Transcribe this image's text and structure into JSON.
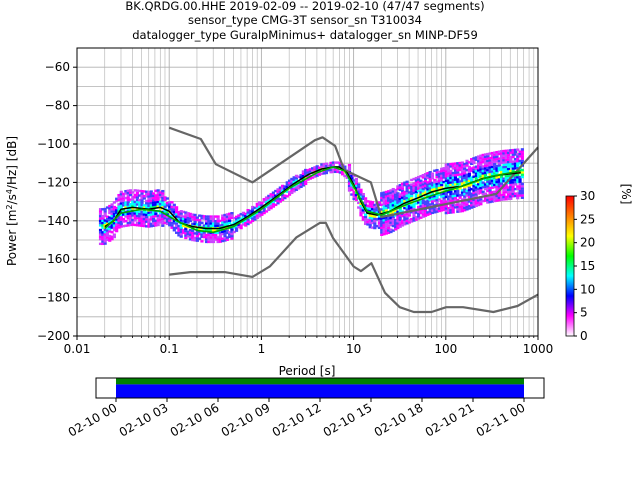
{
  "title_lines": [
    "BK.QRDG.00.HHE   2019-02-09 -- 2019-02-10  (47/47 segments)",
    "sensor_type CMG-3T sensor_sn T310034",
    "datalogger_type GuralpMinimus+ datalogger_sn MINP-DF59"
  ],
  "colorbar": {
    "label": "[%]",
    "ticks": [
      "0",
      "5",
      "10",
      "15",
      "20",
      "25",
      "30"
    ],
    "colors": [
      "#ffffff",
      "#ff00ff",
      "#0000ff",
      "#00ffff",
      "#00ff00",
      "#ffff00",
      "#ff7f00",
      "#ff0000"
    ]
  },
  "chart_data": {
    "type": "heatmap",
    "title": "BK.QRDG.00.HHE   2019-02-09 -- 2019-02-10  (47/47 segments)",
    "xlabel": "Period [s]",
    "ylabel": "Power [m²/s⁴/Hz] [dB]",
    "xscale": "log",
    "xlim": [
      0.01,
      1000
    ],
    "ylim": [
      -200,
      -50
    ],
    "x_tick_labels": [
      "0.01",
      "0.1",
      "1",
      "10",
      "100",
      "1000"
    ],
    "y_tick_labels": [
      "-60",
      "-80",
      "-100",
      "-120",
      "-140",
      "-160",
      "-180",
      "-200"
    ],
    "grid": true,
    "series": [
      {
        "role": "high noise model",
        "color": "#666666",
        "x": [
          0.1,
          0.22,
          0.32,
          0.8,
          3.8,
          4.6,
          6.3,
          7.9,
          15.4,
          20,
          354.8,
          10000
        ],
        "y": [
          -91.5,
          -97.4,
          -110.5,
          -120,
          -98,
          -96.5,
          -101,
          -113.5,
          -120,
          -138,
          -126,
          -48
        ]
      },
      {
        "role": "low noise model",
        "color": "#666666",
        "x": [
          0.1,
          0.17,
          0.4,
          0.8,
          1.24,
          2.4,
          4.3,
          5.0,
          6.0,
          10,
          12,
          15.6,
          21.9,
          31.6,
          45,
          70,
          101,
          154,
          328,
          600,
          10000
        ],
        "y": [
          -168,
          -166.7,
          -166.7,
          -169.2,
          -163.7,
          -148.6,
          -141.1,
          -141.1,
          -149,
          -163.8,
          -166.2,
          -162.1,
          -177.5,
          -185,
          -187.5,
          -187.5,
          -185,
          -185,
          -187.5,
          -184.4,
          -151.5
        ]
      },
      {
        "role": "mean",
        "color": "#000000",
        "x": [
          0.02,
          0.025,
          0.03,
          0.04,
          0.06,
          0.08,
          0.1,
          0.13,
          0.18,
          0.25,
          0.35,
          0.5,
          0.7,
          1.0,
          1.5,
          2.2,
          3.2,
          4.5,
          6,
          7,
          8.5,
          10,
          12,
          14,
          18,
          25,
          35,
          50,
          70,
          100,
          150,
          250,
          400,
          650
        ],
        "y": [
          -143,
          -140,
          -134,
          -133,
          -134,
          -133,
          -135,
          -141,
          -143,
          -144,
          -144,
          -142,
          -138,
          -133,
          -127,
          -121,
          -116,
          -113,
          -112,
          -112,
          -115,
          -121,
          -130,
          -136,
          -137,
          -135,
          -131,
          -128,
          -125,
          -123,
          -122,
          -118,
          -116,
          -115
        ]
      },
      {
        "role": "mode",
        "color": "#00aa00",
        "x": [
          0.02,
          0.03,
          0.05,
          0.08,
          0.12,
          0.2,
          0.3,
          0.5,
          1,
          2,
          4,
          6,
          8,
          10,
          14,
          20,
          40,
          80,
          150,
          300,
          650
        ],
        "y": [
          -144,
          -136,
          -134,
          -135,
          -140,
          -145,
          -146,
          -143,
          -134,
          -123,
          -115,
          -112,
          -114,
          -122,
          -135,
          -137,
          -131,
          -126,
          -122,
          -117,
          -114
        ]
      }
    ],
    "time_axis": {
      "tick_labels": [
        "02-10 00",
        "02-10 03",
        "02-10 06",
        "02-10 09",
        "02-10 12",
        "02-10 15",
        "02-10 18",
        "02-10 21",
        "02-11 00"
      ],
      "bands": [
        "green",
        "blue"
      ]
    }
  }
}
